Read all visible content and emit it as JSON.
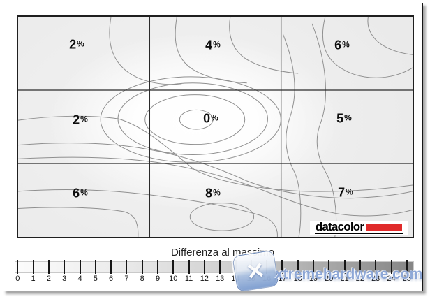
{
  "chart_data": {
    "type": "heatmap",
    "subtype": "contour-uniformity-map",
    "title": "Differenza al massimo",
    "unit": "%",
    "grid_rows": 3,
    "grid_cols": 3,
    "row_names": [
      "top",
      "middle",
      "bottom"
    ],
    "col_names": [
      "left",
      "center",
      "right"
    ],
    "series": [
      {
        "name": "top-row",
        "values": [
          2,
          4,
          6
        ]
      },
      {
        "name": "middle-row",
        "values": [
          2,
          0,
          5
        ]
      },
      {
        "name": "bottom-row",
        "values": [
          6,
          8,
          7
        ]
      }
    ],
    "contour_minimum": {
      "row": "middle",
      "col": "center",
      "value": 0
    },
    "scale": {
      "label": "Differenza al massimo",
      "min": 0,
      "max": 25,
      "step": 1
    },
    "legend_position": "bottom",
    "grid": true
  },
  "cells": [
    {
      "value": "2",
      "unit": "%"
    },
    {
      "value": "4",
      "unit": "%"
    },
    {
      "value": "6",
      "unit": "%"
    },
    {
      "value": "2",
      "unit": "%"
    },
    {
      "value": "0",
      "unit": "%"
    },
    {
      "value": "5",
      "unit": "%"
    },
    {
      "value": "6",
      "unit": "%"
    },
    {
      "value": "8",
      "unit": "%"
    },
    {
      "value": "7",
      "unit": "%"
    }
  ],
  "scale": {
    "title": "Differenza al massimo",
    "ticks": [
      "0",
      "1",
      "2",
      "3",
      "4",
      "5",
      "6",
      "7",
      "8",
      "9",
      "10",
      "11",
      "12",
      "13",
      "14",
      "15",
      "16",
      "17",
      "18",
      "19",
      "20",
      "21",
      "22",
      "23",
      "24",
      "25"
    ]
  },
  "logo": {
    "text": "datacolor"
  },
  "watermark": {
    "text": "xtremehardware.com",
    "icon": "x-star"
  },
  "colors": {
    "logo_red": "#e02a2a",
    "contour_line": "#8f8f8f",
    "grid_line": "#2b2b2b",
    "watermark_blue": "#7a99d0",
    "scale_gradient_start": "#fcfcfc",
    "scale_gradient_end": "#858585"
  }
}
